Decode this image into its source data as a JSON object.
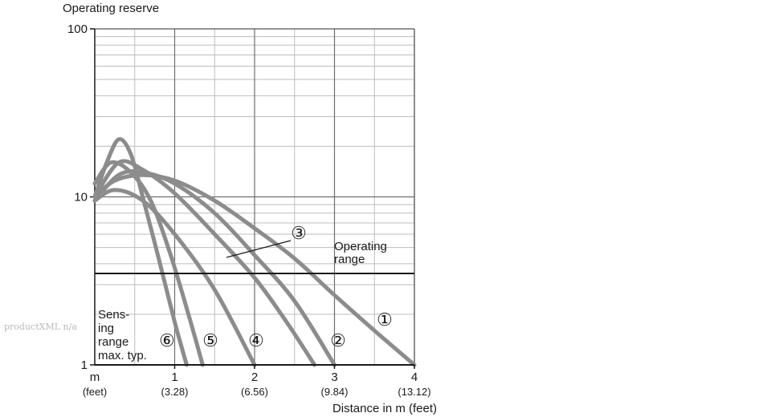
{
  "watermark": "productXML n/a",
  "chart_data": {
    "type": "line",
    "ylabel": "Operating reserve",
    "xlabel": "Distance in m (feet)",
    "x_unit_label": "m",
    "x_unit_sub": "(feet)",
    "y_scale": "log",
    "ylim": [
      1,
      100
    ],
    "xlim": [
      0,
      4
    ],
    "y_ticks": [
      {
        "value": 1,
        "label": "1"
      },
      {
        "value": 10,
        "label": "10"
      },
      {
        "value": 100,
        "label": "100"
      }
    ],
    "x_ticks": [
      {
        "value": 1,
        "label": "1",
        "sub": "(3.28)"
      },
      {
        "value": 2,
        "label": "2",
        "sub": "(6.56)"
      },
      {
        "value": 3,
        "label": "3",
        "sub": "(9.84)"
      },
      {
        "value": 4,
        "label": "4",
        "sub": "(13.12)"
      }
    ],
    "grid": true,
    "operating_range_level": 3.5,
    "operating_range_label": [
      "Operating",
      "range"
    ],
    "sensing_range_label": [
      "Sens-",
      "ing",
      "range",
      "max. typ."
    ],
    "series": [
      {
        "marker": "①",
        "x": [
          0,
          0.25,
          0.6,
          1.0,
          1.5,
          2.0,
          2.5,
          3.0,
          3.5,
          4.0
        ],
        "y": [
          10,
          12.5,
          13.5,
          12.5,
          9.5,
          6.5,
          4.3,
          2.6,
          1.6,
          1.0
        ]
      },
      {
        "marker": "②",
        "x": [
          0,
          0.3,
          0.6,
          1.0,
          1.5,
          2.0,
          2.5,
          3.0
        ],
        "y": [
          9.5,
          13.5,
          14,
          12,
          8,
          4.5,
          2.4,
          1.0
        ]
      },
      {
        "marker": "③",
        "x": [
          0,
          0.3,
          0.6,
          1.0,
          1.5,
          2.0,
          2.4,
          2.75
        ],
        "y": [
          10,
          16,
          14.5,
          10.5,
          6,
          3.3,
          1.8,
          1.0
        ]
      },
      {
        "marker": "④",
        "x": [
          0,
          0.25,
          0.6,
          1.0,
          1.5,
          2.0
        ],
        "y": [
          9.5,
          11,
          9.5,
          6,
          2.8,
          1.0
        ]
      },
      {
        "marker": "⑤",
        "x": [
          0,
          0.2,
          0.45,
          0.7,
          0.95,
          1.2,
          1.35
        ],
        "y": [
          12,
          16,
          14,
          9.5,
          4.5,
          1.8,
          1.0
        ]
      },
      {
        "marker": "⑥",
        "x": [
          0,
          0.15,
          0.3,
          0.45,
          0.6,
          0.8,
          1.0,
          1.15
        ],
        "y": [
          10,
          16,
          22,
          18,
          10,
          4.3,
          1.8,
          1.0
        ]
      }
    ],
    "callout": "③",
    "line_color": "#8c8c8c",
    "axis_color": "#1a1a1a",
    "grid_color": "#bdbdbd"
  }
}
